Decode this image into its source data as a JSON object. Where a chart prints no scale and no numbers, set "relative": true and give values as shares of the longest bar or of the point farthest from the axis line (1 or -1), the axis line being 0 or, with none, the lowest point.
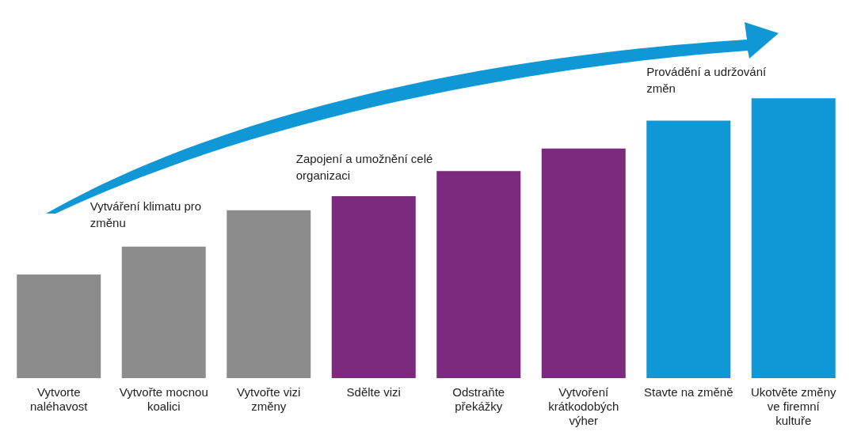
{
  "chart_data": {
    "type": "bar",
    "relative": true,
    "categories": [
      "Vytvorte naléhavost",
      "Vytvořte mocnou koalici",
      "Vytvořte vizi změny",
      "Sdělte vizi",
      "Odstraňte překážky",
      "Vytvoření krátkodobých výher",
      "Stavte na změně",
      "Ukotvěte změny ve firemní kultuře"
    ],
    "values": [
      0.37,
      0.47,
      0.6,
      0.65,
      0.74,
      0.82,
      0.92,
      1
    ],
    "colors": [
      "#8c8c8c",
      "#8c8c8c",
      "#8c8c8c",
      "#7b2a7e",
      "#7b2a7e",
      "#7b2a7e",
      "#0f97d6",
      "#0f97d6"
    ],
    "annotations": [
      "Vytváření klimatu pro změnu",
      "Zapojení a umožnění celé organizaci",
      "Provádění a udržování změn"
    ],
    "grid": false,
    "legend": false
  }
}
